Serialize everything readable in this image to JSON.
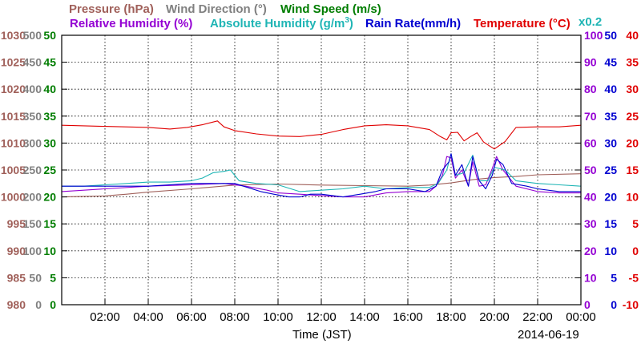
{
  "header": {
    "pressure": "Pressure (hPa)",
    "wind_direction": "Wind Direction (°)",
    "wind_speed": "Wind Speed (m/s)",
    "rel_humidity": "Relative Humidity (%)",
    "abs_humidity_prefix": "Absolute Humidity (g/m",
    "abs_humidity_sup": "3",
    "abs_humidity_suffix": ")",
    "rain_rate": "Rain Rate(mm/h)",
    "temperature": "Temperature (°C)",
    "multiplier": "x0.2"
  },
  "colors": {
    "pressure": "#a0605a",
    "wind_direction": "#808080",
    "wind_speed": "#007d00",
    "rel_humidity": "#9400d3",
    "abs_humidity": "#1fb5b5",
    "rain_rate": "#0000d0",
    "temperature": "#e00000"
  },
  "chart_data": {
    "type": "line",
    "title": "",
    "xlabel": "Time (JST)",
    "date": "2014-06-19",
    "x_range": [
      0,
      24
    ],
    "x_ticks": [
      "02:00",
      "04:00",
      "06:00",
      "08:00",
      "10:00",
      "12:00",
      "14:00",
      "16:00",
      "18:00",
      "20:00",
      "22:00",
      "00:00"
    ],
    "grid": true,
    "axes": {
      "pressure": {
        "range": [
          980,
          1030
        ],
        "ticks": [
          "980",
          "985",
          "990",
          "995",
          "1000",
          "1005",
          "1010",
          "1015",
          "1020",
          "1025",
          "1030"
        ]
      },
      "wind_direction": {
        "range": [
          0,
          500
        ],
        "ticks": [
          "0",
          "50",
          "100",
          "150",
          "200",
          "250",
          "300",
          "350",
          "400",
          "450",
          "500"
        ]
      },
      "wind_speed": {
        "range": [
          0,
          50
        ],
        "ticks": [
          "0",
          "5",
          "10",
          "15",
          "20",
          "25",
          "30",
          "35",
          "40",
          "45",
          "50"
        ]
      },
      "humidity": {
        "range": [
          0,
          100
        ],
        "ticks": [
          "0",
          "10",
          "20",
          "30",
          "40",
          "50",
          "60",
          "70",
          "80",
          "90",
          "100"
        ]
      },
      "rain_rate": {
        "range": [
          0,
          50
        ],
        "ticks": [
          "0",
          "5",
          "10",
          "15",
          "20",
          "25",
          "30",
          "35",
          "40",
          "45",
          "50"
        ]
      },
      "temperature": {
        "range": [
          -10,
          40
        ],
        "ticks": [
          "-10",
          "-5",
          "0",
          "5",
          "10",
          "15",
          "20",
          "25",
          "30",
          "35",
          "40"
        ]
      }
    },
    "series": [
      {
        "name": "Temperature (°C)",
        "color_key": "temperature",
        "axis": "temperature",
        "x": [
          0,
          2,
          4,
          5,
          5.8,
          6.5,
          7.2,
          7.5,
          8,
          9,
          10,
          11,
          12,
          13,
          14,
          15,
          16,
          17,
          17.5,
          17.8,
          18,
          18.3,
          18.6,
          18.9,
          19.2,
          19.5,
          19.8,
          20,
          20.5,
          21,
          22,
          23,
          24
        ],
        "y": [
          23.3,
          23.1,
          22.9,
          22.6,
          22.9,
          23.4,
          24.1,
          23.0,
          22.3,
          21.7,
          21.3,
          21.2,
          21.6,
          22.5,
          23.2,
          23.4,
          23.2,
          22.5,
          21.2,
          20.6,
          21.9,
          22.0,
          20.4,
          21.2,
          21.9,
          20.2,
          19.4,
          18.9,
          20.3,
          22.9,
          23.0,
          23.0,
          23.3
        ]
      },
      {
        "name": "Pressure (hPa)",
        "color_key": "pressure",
        "axis": "pressure",
        "x": [
          0,
          1,
          2,
          3,
          4,
          6,
          8,
          10,
          12,
          14,
          16,
          17,
          18,
          19,
          20,
          21,
          22,
          24
        ],
        "y": [
          1000.0,
          1000.1,
          1000.2,
          1000.5,
          1000.9,
          1001.5,
          1002.2,
          1002.4,
          1002.2,
          1002.1,
          1002.0,
          1002.2,
          1002.6,
          1003.2,
          1003.6,
          1003.8,
          1004.1,
          1004.3
        ]
      },
      {
        "name": "Relative Humidity (%)",
        "color_key": "rel_humidity",
        "axis": "humidity",
        "x": [
          0,
          2,
          4,
          6,
          7.5,
          8.5,
          9.5,
          10,
          11,
          12,
          13,
          14,
          15,
          16,
          17,
          17.3,
          17.6,
          17.8,
          18,
          18.2,
          18.5,
          18.8,
          19,
          19.3,
          19.6,
          19.9,
          20.1,
          20.4,
          21,
          22,
          23,
          24
        ],
        "y": [
          42.0,
          43.0,
          44.0,
          44.5,
          45.0,
          44.0,
          42.5,
          41.5,
          41.0,
          40.5,
          40.0,
          40.0,
          41.5,
          42.0,
          42.0,
          44.0,
          48.0,
          55.0,
          54.5,
          47.0,
          50.0,
          44.0,
          53.0,
          44.0,
          44.5,
          50.5,
          55.0,
          50.0,
          44.0,
          42.0,
          41.5,
          41.5
        ]
      },
      {
        "name": "Absolute Humidity (g/m3)",
        "color_key": "abs_humidity",
        "axis": "humidity",
        "x": [
          0,
          1,
          2,
          3,
          4,
          5,
          6,
          6.5,
          7,
          7.5,
          7.8,
          8.2,
          9,
          10,
          11,
          12,
          13,
          14,
          15,
          16,
          17,
          17.4,
          17.8,
          18,
          18.2,
          18.6,
          19,
          19.3,
          19.7,
          20,
          20.5,
          21,
          22,
          23,
          24
        ],
        "y": [
          44.0,
          44.0,
          44.5,
          45.0,
          45.5,
          45.5,
          46.0,
          47.0,
          49.0,
          49.5,
          50.0,
          46.0,
          45.0,
          44.5,
          42.0,
          42.5,
          43.0,
          44.0,
          43.0,
          43.5,
          43.5,
          45.0,
          50.0,
          56.0,
          48.0,
          49.0,
          55.5,
          46.0,
          46.0,
          51.0,
          50.0,
          46.0,
          45.0,
          44.5,
          44.0
        ]
      },
      {
        "name": "Rain Rate(mm/h)",
        "color_key": "rain_rate",
        "axis": "rain_rate",
        "x": [
          0,
          2,
          4,
          6,
          8,
          9.2,
          9.8,
          10.5,
          11,
          11.5,
          12,
          13,
          13.8,
          14.5,
          15,
          16,
          16.8,
          17.3,
          17.6,
          17.9,
          18,
          18.2,
          18.5,
          18.8,
          19,
          19.3,
          19.6,
          19.9,
          20.1,
          20.4,
          20.8,
          21.5,
          22,
          23,
          24
        ],
        "y": [
          22.0,
          22.0,
          22.0,
          22.5,
          22.5,
          21.0,
          20.5,
          20.0,
          20.0,
          20.5,
          20.5,
          20.0,
          20.5,
          21.0,
          21.5,
          21.5,
          21.0,
          22.0,
          25.0,
          26.5,
          28.0,
          24.0,
          26.0,
          22.0,
          27.5,
          23.0,
          21.5,
          24.0,
          27.0,
          26.0,
          22.5,
          22.0,
          21.5,
          21.0,
          21.0
        ]
      }
    ]
  }
}
